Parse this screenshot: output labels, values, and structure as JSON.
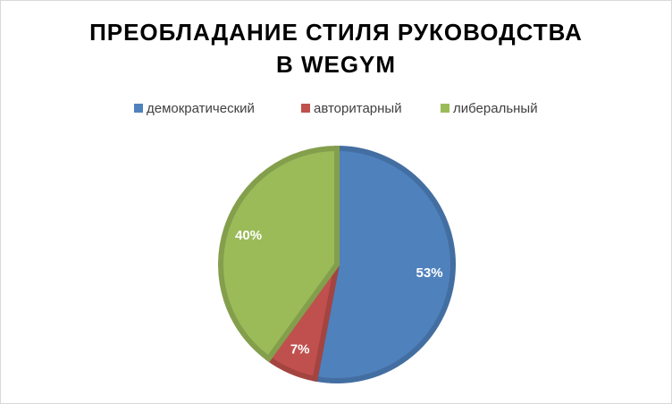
{
  "chart_data": {
    "type": "pie",
    "title": "ПРЕОБЛАДАНИЕ СТИЛЯ РУКОВОДСТВА В WEGYM",
    "categories": [
      "демократический",
      "авторитарный",
      "либеральный"
    ],
    "values": [
      53,
      7,
      40
    ],
    "value_labels": [
      "53%",
      "7%",
      "40%"
    ],
    "colors": [
      "#4f81bd",
      "#c0504d",
      "#9bbb59"
    ],
    "legend": "top"
  }
}
